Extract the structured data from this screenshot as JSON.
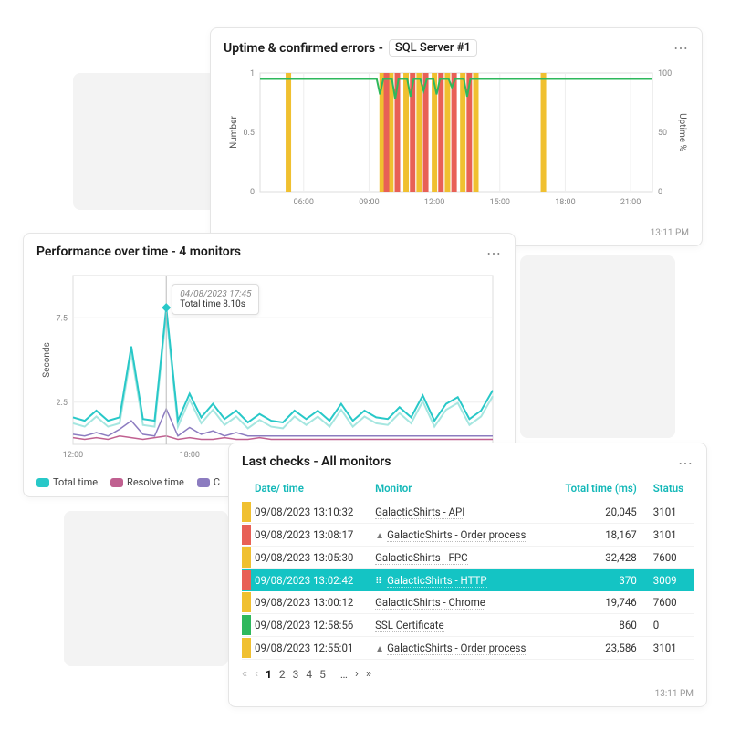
{
  "colors": {
    "teal": "#28c8c8",
    "teal_light": "#a6e6e0",
    "magenta": "#c06090",
    "purple": "#8c7cc0",
    "green_line": "#2eb85c",
    "yellow_bar": "#f0c030",
    "red_bar": "#e86056",
    "status_yellow": "#f0c030",
    "status_red": "#e86056",
    "status_green": "#2eb85c",
    "hl_row": "#14c4c4"
  },
  "uptime_card": {
    "title_prefix": "Uptime & confirmed errors -",
    "title_badge": "SQL Server #1",
    "timestamp": "13:11 PM",
    "y_left_label": "Number",
    "y_right_label": "Uptime %",
    "y_left_ticks": [
      "0",
      "0.5",
      "1"
    ],
    "y_right_ticks": [
      "0",
      "50",
      "100"
    ],
    "x_ticks": [
      "06:00",
      "09:00",
      "12:00",
      "15:00",
      "18:00",
      "21:00"
    ],
    "x_range": [
      4,
      22
    ],
    "yellow_events_x": [
      5.3,
      9.6,
      10.0,
      10.7,
      11.3,
      12.0,
      12.6,
      13.3,
      13.9,
      17.0
    ],
    "red_events_x": [
      9.8,
      10.3,
      11.0,
      11.6,
      12.3,
      12.9,
      13.6
    ],
    "green_line_y": 0.95,
    "green_dips": [
      [
        9.5,
        0.82
      ],
      [
        10.2,
        0.78
      ],
      [
        10.9,
        0.8
      ],
      [
        11.5,
        0.85
      ],
      [
        12.1,
        0.82
      ],
      [
        12.8,
        0.88
      ],
      [
        13.5,
        0.8
      ],
      [
        14.0,
        0.95
      ]
    ]
  },
  "perf_card": {
    "title": "Performance over time - 4 monitors",
    "y_label": "Seconds",
    "y_ticks": [
      "2.5",
      "7.5"
    ],
    "y_max": 10,
    "x_ticks": [
      "12:00",
      "18:00"
    ],
    "x_range": [
      10,
      38
    ],
    "tooltip": {
      "date": "04/08/2023 17:45",
      "text": "Total time 8.10s",
      "x": 15.5
    },
    "legend": [
      {
        "label": "Total time",
        "color": "#28c8c8"
      },
      {
        "label": "Resolve time",
        "color": "#c06090"
      },
      {
        "label": "C",
        "color": "#8c7cc0"
      }
    ],
    "series_teal": [
      1.6,
      1.4,
      2.0,
      1.4,
      1.6,
      5.8,
      1.5,
      1.4,
      8.1,
      1.4,
      3.0,
      1.6,
      2.4,
      1.5,
      2.0,
      1.3,
      1.8,
      1.4,
      1.3,
      2.0,
      1.5,
      2.0,
      1.4,
      2.4,
      1.4,
      2.0,
      1.6,
      1.5,
      2.2,
      1.6,
      2.9,
      1.4,
      2.4,
      2.8,
      1.5,
      2.0,
      3.2
    ],
    "series_teal_light_offset": 0.35,
    "series_magenta": [
      0.4,
      0.3,
      0.4,
      0.3,
      0.5,
      0.4,
      0.3,
      0.4,
      0.5,
      0.3,
      0.4,
      0.3,
      0.3,
      0.4,
      0.3,
      0.3,
      0.4,
      0.3,
      0.3,
      0.3,
      0.3,
      0.3,
      0.3,
      0.3,
      0.3,
      0.3,
      0.3,
      0.3,
      0.3,
      0.3,
      0.3,
      0.3,
      0.3,
      0.3,
      0.3,
      0.3,
      0.3
    ],
    "series_purple": [
      0.6,
      0.5,
      0.7,
      0.5,
      0.9,
      1.4,
      0.6,
      0.5,
      2.1,
      0.5,
      1.0,
      0.6,
      0.8,
      0.5,
      0.7,
      0.5,
      0.5,
      0.5,
      0.5,
      0.5,
      0.5,
      0.5,
      0.5,
      0.5,
      0.5,
      0.5,
      0.5,
      0.5,
      0.5,
      0.5,
      0.5,
      0.5,
      0.5,
      0.5,
      0.5,
      0.5,
      0.5
    ]
  },
  "checks_card": {
    "title": "Last checks - All monitors",
    "timestamp": "13:11 PM",
    "columns": {
      "datetime": "Date/ time",
      "monitor": "Monitor",
      "total_time": "Total time (ms)",
      "status": "Status"
    },
    "rows": [
      {
        "stripe": "#f0c030",
        "datetime": "09/08/2023 13:10:32",
        "icon": "",
        "monitor": "GalacticShirts - API",
        "total": "20,045",
        "status": "3101",
        "hl": false
      },
      {
        "stripe": "#e86056",
        "datetime": "09/08/2023 13:08:17",
        "icon": "▲",
        "monitor": "GalacticShirts - Order process",
        "total": "18,167",
        "status": "3101",
        "hl": false
      },
      {
        "stripe": "#f0c030",
        "datetime": "09/08/2023 13:05:30",
        "icon": "",
        "monitor": "GalacticShirts - FPC",
        "total": "32,428",
        "status": "7600",
        "hl": false
      },
      {
        "stripe": "#e86056",
        "datetime": "09/08/2023 13:02:42",
        "icon": "⠿",
        "monitor": "GalacticShirts - HTTP",
        "total": "370",
        "status": "3009",
        "hl": true
      },
      {
        "stripe": "#f0c030",
        "datetime": "09/08/2023 13:00:12",
        "icon": "",
        "monitor": "GalacticShirts - Chrome",
        "total": "19,746",
        "status": "7600",
        "hl": false
      },
      {
        "stripe": "#2eb85c",
        "datetime": "09/08/2023 12:58:56",
        "icon": "",
        "monitor": "SSL Certificate",
        "total": "860",
        "status": "0",
        "hl": false
      },
      {
        "stripe": "#f0c030",
        "datetime": "09/08/2023 12:55:01",
        "icon": "▲",
        "monitor": "GalacticShirts - Order process",
        "total": "23,586",
        "status": "3101",
        "hl": false
      }
    ],
    "pager": {
      "pages": [
        "1",
        "2",
        "3",
        "4",
        "5"
      ],
      "active": "1",
      "ellipsis": "…"
    }
  }
}
